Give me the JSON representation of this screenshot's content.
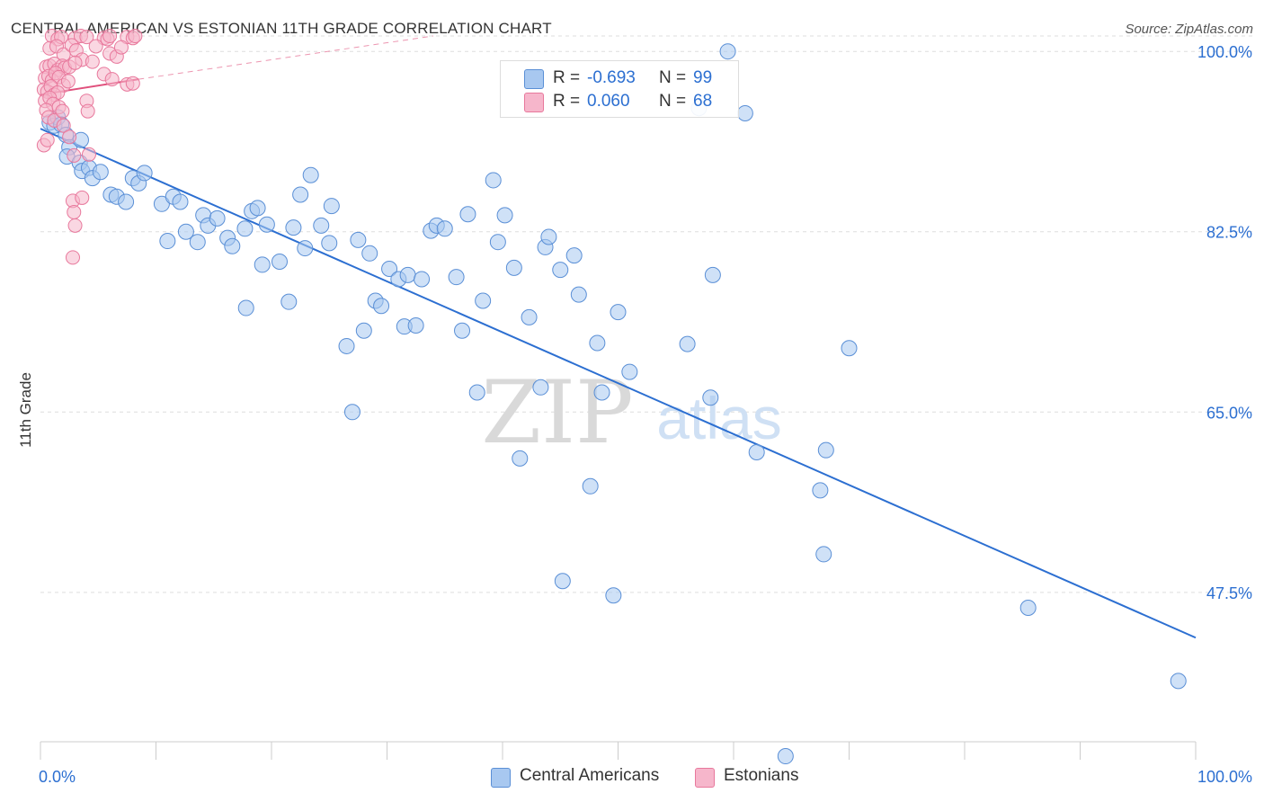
{
  "title": "CENTRAL AMERICAN VS ESTONIAN 11TH GRADE CORRELATION CHART",
  "source": "Source: ZipAtlas.com",
  "legend": {
    "r_label": "R =",
    "n_label": "N =",
    "rows": [
      {
        "name": "Central Americans",
        "r": "-0.693",
        "n": "99"
      },
      {
        "name": "Estonians",
        "r": "0.060",
        "n": "68"
      }
    ]
  },
  "watermark": {
    "zip": "ZIP",
    "atlas": "atlas"
  },
  "colors": {
    "blue_fill": "#a8c8f0",
    "blue_stroke": "#5a8fd6",
    "blue_line": "#2c6fd1",
    "pink_fill": "#f6b6cb",
    "pink_stroke": "#e8789c",
    "pink_line": "#e0507c",
    "axis_label": "#2c6fd1",
    "grid": "#dddddd"
  },
  "chart_data": {
    "type": "scatter",
    "title": "CENTRAL AMERICAN VS ESTONIAN 11TH GRADE CORRELATION CHART",
    "xlabel": "",
    "ylabel": "11th Grade",
    "xlim": [
      0,
      100
    ],
    "ylim": [
      33,
      101.5
    ],
    "x_tick_labels": [
      "0.0%",
      "100.0%"
    ],
    "y_ticks": [
      47.5,
      65.0,
      82.5,
      100.0
    ],
    "y_tick_labels": [
      "47.5%",
      "65.0%",
      "82.5%",
      "100.0%"
    ],
    "grid": true,
    "legend_position": "bottom-center",
    "series": [
      {
        "name": "Central Americans",
        "r": -0.693,
        "n": 99,
        "trend": {
          "x": [
            0,
            100
          ],
          "y": [
            92.5,
            43.1
          ]
        },
        "points": [
          [
            0.8,
            93.1
          ],
          [
            1.2,
            92.8
          ],
          [
            1.5,
            93.6
          ],
          [
            1.8,
            92.9
          ],
          [
            2.2,
            91.9
          ],
          [
            2.5,
            90.7
          ],
          [
            2.3,
            89.8
          ],
          [
            3.4,
            89.2
          ],
          [
            3.6,
            88.4
          ],
          [
            4.2,
            88.7
          ],
          [
            4.5,
            87.7
          ],
          [
            5.2,
            88.3
          ],
          [
            6.1,
            86.1
          ],
          [
            6.6,
            85.9
          ],
          [
            7.4,
            85.4
          ],
          [
            8.0,
            87.7
          ],
          [
            8.5,
            87.2
          ],
          [
            9.0,
            88.2
          ],
          [
            10.5,
            85.2
          ],
          [
            11.0,
            81.6
          ],
          [
            11.5,
            85.9
          ],
          [
            12.1,
            85.4
          ],
          [
            12.6,
            82.5
          ],
          [
            13.6,
            81.5
          ],
          [
            14.1,
            84.1
          ],
          [
            14.5,
            83.1
          ],
          [
            15.3,
            83.8
          ],
          [
            16.2,
            81.9
          ],
          [
            16.6,
            81.1
          ],
          [
            17.7,
            82.8
          ],
          [
            18.3,
            84.5
          ],
          [
            18.8,
            84.8
          ],
          [
            19.6,
            83.2
          ],
          [
            19.2,
            79.3
          ],
          [
            17.8,
            75.1
          ],
          [
            20.7,
            79.6
          ],
          [
            21.5,
            75.7
          ],
          [
            21.9,
            82.9
          ],
          [
            22.5,
            86.1
          ],
          [
            22.9,
            80.9
          ],
          [
            23.4,
            88.0
          ],
          [
            24.3,
            83.1
          ],
          [
            25.0,
            81.4
          ],
          [
            25.2,
            85.0
          ],
          [
            26.5,
            71.4
          ],
          [
            27.0,
            65.0
          ],
          [
            27.5,
            81.7
          ],
          [
            28.0,
            72.9
          ],
          [
            28.5,
            80.4
          ],
          [
            29.0,
            75.8
          ],
          [
            29.5,
            75.3
          ],
          [
            30.2,
            78.9
          ],
          [
            31.0,
            77.9
          ],
          [
            31.5,
            73.3
          ],
          [
            31.8,
            78.3
          ],
          [
            32.5,
            73.4
          ],
          [
            33.0,
            77.9
          ],
          [
            33.8,
            82.6
          ],
          [
            34.3,
            83.1
          ],
          [
            35.0,
            82.8
          ],
          [
            36.0,
            78.1
          ],
          [
            36.5,
            72.9
          ],
          [
            37.0,
            84.2
          ],
          [
            37.8,
            66.9
          ],
          [
            38.3,
            75.8
          ],
          [
            39.2,
            87.5
          ],
          [
            39.6,
            81.5
          ],
          [
            40.2,
            84.1
          ],
          [
            41.0,
            79.0
          ],
          [
            41.5,
            60.5
          ],
          [
            42.3,
            74.2
          ],
          [
            43.3,
            67.4
          ],
          [
            43.7,
            81.0
          ],
          [
            44.0,
            82.0
          ],
          [
            45.2,
            48.6
          ],
          [
            45.0,
            78.8
          ],
          [
            46.2,
            80.2
          ],
          [
            46.6,
            76.4
          ],
          [
            47.6,
            57.8
          ],
          [
            48.2,
            71.7
          ],
          [
            48.6,
            66.9
          ],
          [
            49.6,
            47.2
          ],
          [
            50.0,
            74.7
          ],
          [
            51.0,
            68.9
          ],
          [
            56.0,
            71.6
          ],
          [
            57.0,
            94.5
          ],
          [
            58.0,
            66.4
          ],
          [
            58.2,
            78.3
          ],
          [
            59.5,
            100.0
          ],
          [
            61.0,
            94.0
          ],
          [
            62.0,
            61.1
          ],
          [
            64.5,
            31.6
          ],
          [
            67.5,
            57.4
          ],
          [
            67.8,
            51.2
          ],
          [
            68.0,
            61.3
          ],
          [
            70.0,
            71.2
          ],
          [
            85.5,
            46.0
          ],
          [
            98.5,
            38.9
          ],
          [
            3.5,
            91.4
          ]
        ]
      },
      {
        "name": "Estonians",
        "r": 0.06,
        "n": 68,
        "trend_solid": {
          "x": [
            0,
            8.5
          ],
          "y": [
            95.8,
            97.3
          ]
        },
        "trend_dashed": {
          "x": [
            8.5,
            34
          ],
          "y": [
            97.3,
            101.5
          ]
        },
        "points": [
          [
            1.0,
            101.5
          ],
          [
            1.5,
            101.2
          ],
          [
            1.8,
            101.4
          ],
          [
            3.0,
            101.3
          ],
          [
            3.5,
            101.5
          ],
          [
            4.0,
            101.4
          ],
          [
            5.5,
            101.3
          ],
          [
            5.8,
            101.2
          ],
          [
            6.0,
            101.5
          ],
          [
            7.5,
            101.4
          ],
          [
            8.0,
            101.3
          ],
          [
            8.2,
            101.5
          ],
          [
            0.8,
            100.3
          ],
          [
            1.4,
            100.5
          ],
          [
            2.0,
            99.7
          ],
          [
            2.7,
            100.6
          ],
          [
            3.1,
            100.1
          ],
          [
            3.6,
            99.2
          ],
          [
            4.8,
            100.5
          ],
          [
            4.5,
            99.0
          ],
          [
            6.0,
            99.8
          ],
          [
            6.6,
            99.5
          ],
          [
            7.0,
            100.4
          ],
          [
            0.5,
            98.5
          ],
          [
            0.8,
            98.6
          ],
          [
            1.2,
            98.8
          ],
          [
            1.5,
            98.2
          ],
          [
            1.9,
            98.6
          ],
          [
            2.1,
            98.4
          ],
          [
            2.5,
            98.5
          ],
          [
            3.0,
            98.9
          ],
          [
            0.4,
            97.4
          ],
          [
            0.7,
            97.6
          ],
          [
            1.0,
            97.2
          ],
          [
            1.3,
            97.9
          ],
          [
            1.6,
            97.5
          ],
          [
            2.0,
            96.7
          ],
          [
            2.4,
            97.1
          ],
          [
            5.5,
            97.8
          ],
          [
            6.2,
            97.3
          ],
          [
            7.5,
            96.8
          ],
          [
            8.0,
            96.9
          ],
          [
            0.3,
            96.3
          ],
          [
            0.6,
            96.1
          ],
          [
            0.9,
            96.6
          ],
          [
            1.2,
            95.8
          ],
          [
            1.5,
            96.0
          ],
          [
            0.4,
            95.2
          ],
          [
            0.8,
            95.5
          ],
          [
            1.1,
            94.9
          ],
          [
            4.0,
            95.2
          ],
          [
            0.5,
            94.3
          ],
          [
            1.6,
            94.6
          ],
          [
            4.1,
            94.2
          ],
          [
            0.7,
            93.6
          ],
          [
            1.2,
            93.3
          ],
          [
            2.0,
            92.8
          ],
          [
            2.5,
            91.7
          ],
          [
            2.9,
            89.9
          ],
          [
            0.3,
            90.9
          ],
          [
            0.6,
            91.4
          ],
          [
            4.2,
            90.0
          ],
          [
            2.8,
            85.5
          ],
          [
            3.6,
            85.8
          ],
          [
            2.9,
            84.4
          ],
          [
            3.0,
            83.1
          ],
          [
            2.8,
            80.0
          ],
          [
            1.9,
            94.2
          ]
        ]
      }
    ]
  }
}
